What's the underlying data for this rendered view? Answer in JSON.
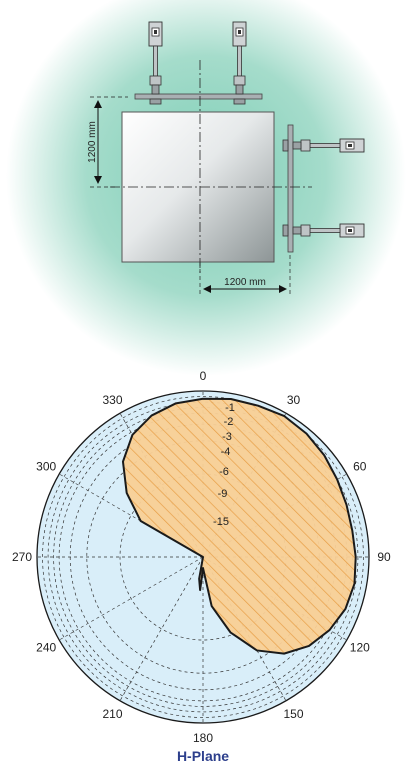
{
  "mount": {
    "height_dimension": "1200 mm",
    "width_dimension": "1200 mm"
  },
  "polar": {
    "title": "H-Plane",
    "angles": [
      0,
      30,
      60,
      90,
      120,
      150,
      180,
      210,
      240,
      270,
      300,
      330
    ],
    "rings": [
      {
        "db": -1,
        "label": "-1"
      },
      {
        "db": -2,
        "label": "-2"
      },
      {
        "db": -3,
        "label": "-3"
      },
      {
        "db": -4,
        "label": "-4"
      },
      {
        "db": -6,
        "label": "-6"
      },
      {
        "db": -9,
        "label": "-9"
      },
      {
        "db": -15,
        "label": "-15"
      }
    ],
    "pattern": [
      [
        0,
        -1.4
      ],
      [
        10,
        -1.0
      ],
      [
        20,
        -0.9
      ],
      [
        30,
        -0.6
      ],
      [
        40,
        -0.9
      ],
      [
        50,
        -1.4
      ],
      [
        60,
        -2.0
      ],
      [
        70,
        -2.4
      ],
      [
        80,
        -2.6
      ],
      [
        90,
        -2.4
      ],
      [
        100,
        -2.2
      ],
      [
        110,
        -2.6
      ],
      [
        120,
        -3.6
      ],
      [
        130,
        -5.0
      ],
      [
        140,
        -7.2
      ],
      [
        150,
        -10.5
      ],
      [
        160,
        -15.5
      ],
      [
        170,
        -21
      ],
      [
        180,
        -28
      ],
      [
        185,
        -24
      ],
      [
        190,
        -26
      ],
      [
        200,
        -30
      ],
      [
        210,
        -30
      ],
      [
        240,
        -30
      ],
      [
        270,
        -30
      ],
      [
        300,
        -17
      ],
      [
        310,
        -12
      ],
      [
        320,
        -7.5
      ],
      [
        330,
        -4.5
      ],
      [
        340,
        -2.8
      ],
      [
        350,
        -1.8
      ],
      [
        360,
        -1.4
      ]
    ],
    "colors": {
      "background": "#d9eef9",
      "pattern_fill": "#f9cf95",
      "hatch": "#e89a3c",
      "outline": "#1a1a1a"
    }
  }
}
